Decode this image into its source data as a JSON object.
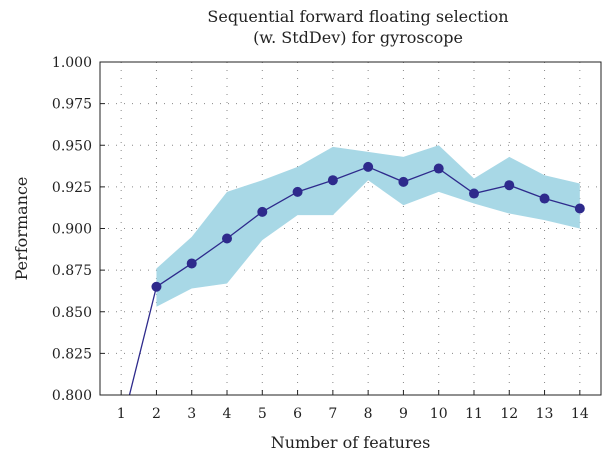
{
  "chart_data": {
    "type": "line",
    "title_line1": "Sequential forward floating selection",
    "title_line2": "(w. StdDev) for gyroscope",
    "xlabel": "Number of features",
    "ylabel": "Performance",
    "x": [
      1,
      2,
      3,
      4,
      5,
      6,
      7,
      8,
      9,
      10,
      11,
      12,
      13,
      14
    ],
    "xlim": [
      0.4,
      14.6
    ],
    "ylim": [
      0.8,
      1.0
    ],
    "x_ticks": [
      "1",
      "2",
      "3",
      "4",
      "5",
      "6",
      "7",
      "8",
      "9",
      "10",
      "11",
      "12",
      "13",
      "14"
    ],
    "y_ticks": [
      "0.800",
      "0.825",
      "0.850",
      "0.875",
      "0.900",
      "0.925",
      "0.950",
      "0.975",
      "1.000"
    ],
    "grid": true,
    "series": [
      {
        "values": [
          0.78,
          0.865,
          0.879,
          0.894,
          0.91,
          0.922,
          0.929,
          0.937,
          0.928,
          0.936,
          0.921,
          0.926,
          0.918,
          0.912
        ],
        "upper": [
          null,
          0.876,
          0.895,
          0.922,
          0.929,
          0.937,
          0.949,
          0.946,
          0.943,
          0.95,
          0.93,
          0.943,
          0.932,
          0.927
        ],
        "lower": [
          null,
          0.853,
          0.864,
          0.867,
          0.893,
          0.908,
          0.908,
          0.929,
          0.914,
          0.922,
          0.915,
          0.909,
          0.905,
          0.9
        ],
        "line_color": "#2e2a8c",
        "band_color": "#a8d8e6"
      }
    ]
  }
}
